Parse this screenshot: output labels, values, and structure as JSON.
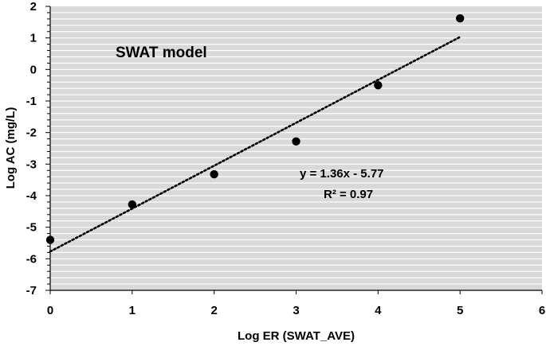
{
  "chart_data": {
    "type": "scatter",
    "title": "",
    "xlabel": "Log ER (SWAT_AVE)",
    "ylabel": "Log AC (mg/L)",
    "xlim": [
      0,
      6
    ],
    "ylim": [
      -7,
      2
    ],
    "x_ticks": [
      "0",
      "1",
      "2",
      "3",
      "4",
      "5",
      "6"
    ],
    "y_ticks": [
      "2",
      "1",
      "0",
      "-1",
      "-2",
      "-3",
      "-4",
      "-5",
      "-6",
      "-7"
    ],
    "grid": "horizontal",
    "points": [
      {
        "x": 0,
        "y": -5.4
      },
      {
        "x": 1,
        "y": -4.28
      },
      {
        "x": 2,
        "y": -3.32
      },
      {
        "x": 3,
        "y": -2.28
      },
      {
        "x": 4,
        "y": -0.5
      },
      {
        "x": 5,
        "y": 1.62
      }
    ],
    "trendline": {
      "slope": 1.36,
      "intercept": -5.77,
      "x_range": [
        0,
        5
      ],
      "style": "dotted"
    },
    "annotations": {
      "model_label": "SWAT model",
      "equation": "y = 1.36x - 5.77",
      "r_squared": "R² = 0.97"
    },
    "colors": {
      "plot_background": "#d9d9d9",
      "gridline": "#ffffff",
      "marker": "#000000",
      "trendline": "#000000"
    }
  }
}
